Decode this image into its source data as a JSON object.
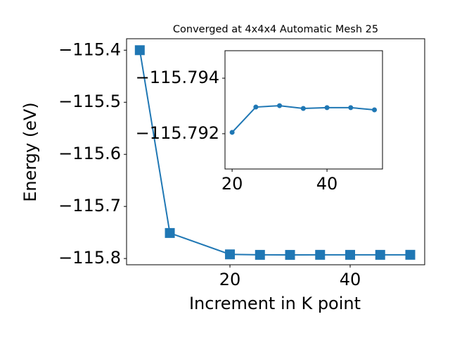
{
  "chart_data": [
    {
      "type": "line",
      "title": "Converged at 4x4x4 Automatic Mesh 25",
      "x_label": "Increment in K point",
      "y_label": "Energy (eV)",
      "x": [
        5,
        10,
        20,
        25,
        30,
        35,
        40,
        45,
        50
      ],
      "series": [
        {
          "color": "#1f77b4",
          "marker": "square",
          "values": [
            -115.4,
            -115.751,
            -115.79205,
            -115.79296,
            -115.79301,
            -115.79291,
            -115.79294,
            -115.79294,
            -115.79286
          ]
        }
      ],
      "xlim": [
        2.8,
        52.4
      ],
      "ylim": [
        -115.812,
        -115.378
      ],
      "xticks": [
        20,
        40
      ],
      "yticks": [
        {
          "value": -115.4,
          "label": "−115.4"
        },
        {
          "value": -115.5,
          "label": "−115.5"
        },
        {
          "value": -115.6,
          "label": "−115.6"
        },
        {
          "value": -115.7,
          "label": "−115.7"
        },
        {
          "value": -115.8,
          "label": "−115.8"
        }
      ]
    },
    {
      "type": "line",
      "x": [
        20,
        25,
        30,
        35,
        40,
        45,
        50
      ],
      "series": [
        {
          "color": "#1f77b4",
          "marker": "circle",
          "values": [
            -115.79205,
            -115.79296,
            -115.79301,
            -115.79291,
            -115.79294,
            -115.79294,
            -115.79286
          ]
        }
      ],
      "xlim": [
        18.5,
        51.7
      ],
      "ylim": [
        -115.79073,
        -115.79499
      ],
      "xticks": [
        20,
        40
      ],
      "yticks": [
        {
          "value": -115.794,
          "label": "−115.794"
        },
        {
          "value": -115.792,
          "label": "−115.792"
        }
      ]
    }
  ]
}
